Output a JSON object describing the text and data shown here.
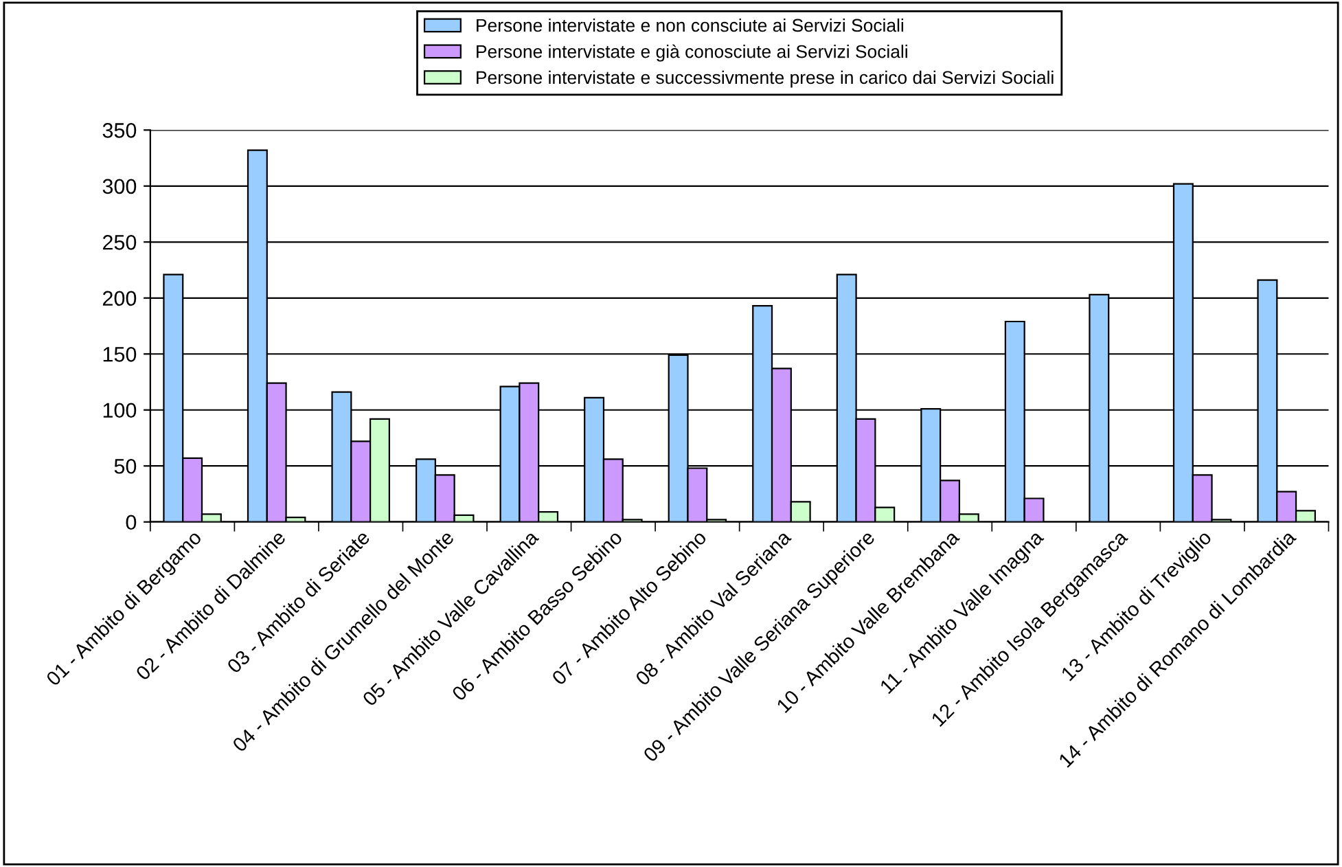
{
  "chart_data": {
    "type": "bar",
    "categories": [
      "01 - Ambito di Bergamo",
      "02 - Ambito di Dalmine",
      "03 - Ambito di Seriate",
      "04 - Ambito di Grumello del Monte",
      "05 - Ambito Valle Cavallina",
      "06 - Ambito Basso Sebino",
      "07 - Ambito Alto Sebino",
      "08 - Ambito Val Seriana",
      "09 - Ambito Valle Seriana Superiore",
      "10 - Ambito Valle Brembana",
      "11 - Ambito Valle Imagna",
      "12 - Ambito Isola Bergamasca",
      "13 - Ambito di Treviglio",
      "14 - Ambito di Romano di Lombardia"
    ],
    "series": [
      {
        "name": "Persone intervistate e non consciute ai Servizi Sociali",
        "color": "#99ccff",
        "values": [
          221,
          332,
          116,
          56,
          121,
          111,
          149,
          193,
          221,
          101,
          179,
          203,
          302,
          216
        ]
      },
      {
        "name": "Persone intervistate e già conosciute ai Servizi Sociali",
        "color": "#cc99ff",
        "values": [
          57,
          124,
          72,
          42,
          124,
          56,
          48,
          137,
          92,
          37,
          21,
          null,
          42,
          27
        ]
      },
      {
        "name": "Persone intervistate e successivmente prese in carico dai Servizi Sociali",
        "color": "#ccffcc",
        "values": [
          7,
          4,
          92,
          6,
          9,
          2,
          2,
          18,
          13,
          7,
          null,
          null,
          2,
          10
        ]
      }
    ],
    "ylim": [
      0,
      350
    ],
    "yticks": [
      0,
      50,
      100,
      150,
      200,
      250,
      300,
      350
    ],
    "grid": "y",
    "legend": "top"
  }
}
